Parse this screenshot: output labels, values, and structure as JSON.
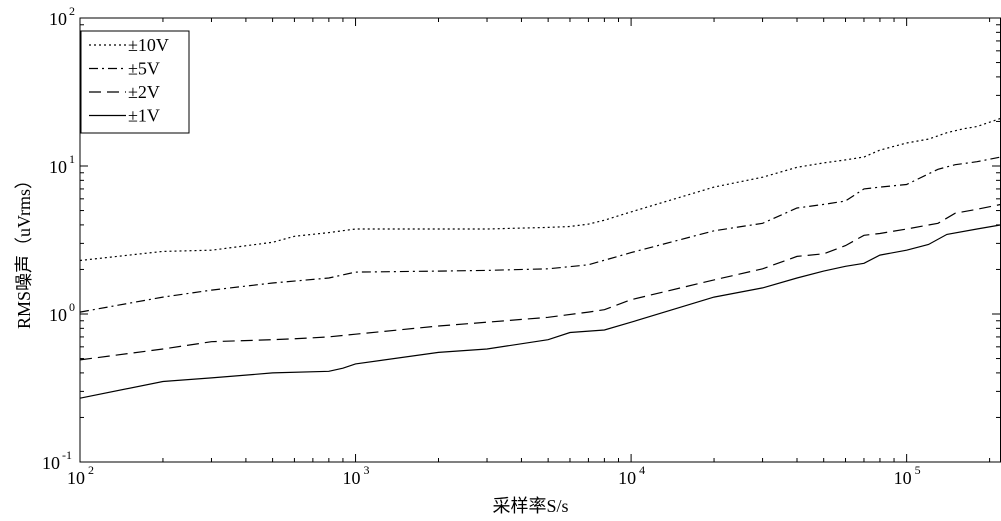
{
  "chart_data": {
    "type": "line",
    "title": "",
    "xlabel": "采样率S/s",
    "ylabel": "RMS噪声（uVrms）",
    "x_scale": "log",
    "y_scale": "log",
    "xlim": [
      100,
      220000
    ],
    "ylim": [
      0.1,
      100
    ],
    "grid": false,
    "legend_position": "top-left",
    "x_ticks": [
      {
        "value": 100,
        "base": "10",
        "exp": "2"
      },
      {
        "value": 1000,
        "base": "10",
        "exp": "3"
      },
      {
        "value": 10000,
        "base": "10",
        "exp": "4"
      },
      {
        "value": 100000,
        "base": "10",
        "exp": "5"
      }
    ],
    "y_ticks": [
      {
        "value": 0.1,
        "base": "10",
        "exp": "-1"
      },
      {
        "value": 1,
        "base": "10",
        "exp": "0"
      },
      {
        "value": 10,
        "base": "10",
        "exp": "1"
      },
      {
        "value": 100,
        "base": "10",
        "exp": "2"
      }
    ],
    "series": [
      {
        "name": "±10V",
        "dash": "dotted",
        "x": [
          100,
          200,
          300,
          500,
          600,
          800,
          1000,
          2000,
          3000,
          5000,
          6000,
          7000,
          8000,
          10000,
          20000,
          30000,
          40000,
          50000,
          60000,
          70000,
          80000,
          100000,
          120000,
          140000,
          160000,
          180000,
          220000
        ],
        "y": [
          2.3,
          2.65,
          2.7,
          3.05,
          3.35,
          3.55,
          3.75,
          3.75,
          3.75,
          3.85,
          3.9,
          4.05,
          4.3,
          4.9,
          7.2,
          8.4,
          9.8,
          10.5,
          11.0,
          11.5,
          12.8,
          14.3,
          15.2,
          16.8,
          17.8,
          18.5,
          21.0
        ]
      },
      {
        "name": "±5V",
        "dash": "dashdot",
        "x": [
          100,
          200,
          300,
          500,
          800,
          1000,
          2000,
          3000,
          5000,
          7000,
          10000,
          20000,
          30000,
          40000,
          50000,
          60000,
          70000,
          80000,
          100000,
          130000,
          150000,
          180000,
          220000
        ],
        "y": [
          1.03,
          1.3,
          1.45,
          1.62,
          1.75,
          1.92,
          1.95,
          1.97,
          2.02,
          2.15,
          2.6,
          3.65,
          4.1,
          5.2,
          5.5,
          5.8,
          7.0,
          7.2,
          7.5,
          9.5,
          10.2,
          10.7,
          11.5
        ]
      },
      {
        "name": "±2V",
        "dash": "dashed",
        "x": [
          100,
          200,
          300,
          500,
          600,
          800,
          1000,
          2000,
          3000,
          5000,
          7000,
          8000,
          10000,
          20000,
          30000,
          40000,
          50000,
          60000,
          70000,
          80000,
          100000,
          130000,
          150000,
          180000,
          220000
        ],
        "y": [
          0.49,
          0.58,
          0.65,
          0.67,
          0.68,
          0.7,
          0.73,
          0.83,
          0.88,
          0.95,
          1.03,
          1.07,
          1.25,
          1.7,
          2.02,
          2.45,
          2.55,
          2.9,
          3.4,
          3.5,
          3.75,
          4.1,
          4.8,
          5.1,
          5.5
        ]
      },
      {
        "name": "±1V",
        "dash": "solid",
        "x": [
          100,
          200,
          300,
          500,
          800,
          900,
          1000,
          2000,
          3000,
          5000,
          6000,
          8000,
          10000,
          20000,
          30000,
          40000,
          50000,
          60000,
          70000,
          80000,
          100000,
          120000,
          140000,
          180000,
          220000
        ],
        "y": [
          0.27,
          0.35,
          0.37,
          0.4,
          0.41,
          0.43,
          0.46,
          0.55,
          0.58,
          0.67,
          0.75,
          0.78,
          0.88,
          1.3,
          1.5,
          1.75,
          1.95,
          2.1,
          2.2,
          2.5,
          2.7,
          2.95,
          3.45,
          3.75,
          4.0
        ]
      }
    ]
  }
}
